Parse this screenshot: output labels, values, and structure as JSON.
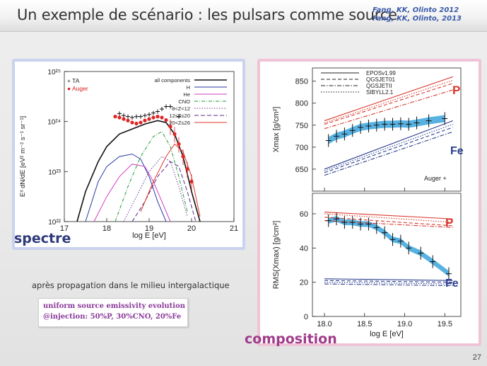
{
  "slide": {
    "title": "Un exemple de scénario : les pulsars comme source",
    "references": [
      "Fang, KK, Olinto 2012",
      "Fang, KK, Olinto, 2013"
    ],
    "label_spectrum": "spectre",
    "label_composition": "composition",
    "caption": "après propagation dans le milieu intergalactique",
    "note_lines": [
      "uniform source emissivity evolution",
      "@injection: 50%P, 30%CNO, 20%Fe"
    ],
    "page_number": "27"
  },
  "colors": {
    "blue_frame": "#c9d3ef",
    "pink_frame": "#efc4d6",
    "spectre_label": "#2e3a7a",
    "composition_label": "#a03a8a",
    "proton_red": "#d8382e",
    "iron_blue": "#2c3f8e",
    "model_band": "#3ba5dc"
  },
  "chart_data": [
    {
      "type": "line",
      "xlabel": "log E [eV]",
      "ylabel": "E³ dN/dE [eV² m⁻² s⁻¹ sr⁻¹]",
      "xlim": [
        17,
        21
      ],
      "ylim_log10": [
        22,
        25
      ],
      "x_ticks": [
        "17",
        "18",
        "19",
        "20",
        "21"
      ],
      "y_ticks": [
        "10²²",
        "10²³",
        "10²⁴",
        "10²⁵"
      ],
      "legend_data": [
        "+ TA",
        "● Auger"
      ],
      "legend_models": [
        "all components",
        "H",
        "He",
        "CNO",
        "8<Z<12",
        "12≤Z≤20",
        "20<Z≤26"
      ],
      "series": [
        {
          "name": "TA",
          "x": [
            18.3,
            18.4,
            18.5,
            18.6,
            18.7,
            18.8,
            18.9,
            19.0,
            19.1,
            19.2,
            19.3,
            19.4,
            19.5,
            19.7
          ],
          "y": [
            24.16,
            24.12,
            24.1,
            24.08,
            24.1,
            24.1,
            24.12,
            24.14,
            24.17,
            24.2,
            24.25,
            24.3,
            24.3,
            24.1
          ]
        },
        {
          "name": "Auger",
          "x": [
            18.2,
            18.3,
            18.4,
            18.5,
            18.6,
            18.7,
            18.8,
            18.9,
            19.0,
            19.1,
            19.2,
            19.3,
            19.4,
            19.5,
            19.6,
            19.7,
            19.8,
            19.9,
            20.0
          ],
          "y": [
            24.1,
            24.08,
            24.05,
            24.02,
            23.98,
            23.96,
            23.98,
            24.02,
            24.05,
            24.08,
            24.1,
            24.08,
            24.03,
            23.9,
            23.75,
            23.55,
            23.3,
            23.05,
            22.8
          ]
        },
        {
          "name": "all components",
          "x": [
            17.3,
            17.5,
            17.8,
            18.0,
            18.3,
            18.6,
            18.9,
            19.2,
            19.4,
            19.6,
            19.8,
            20.0,
            20.2
          ],
          "y": [
            22.0,
            22.6,
            23.2,
            23.5,
            23.75,
            23.85,
            23.95,
            24.02,
            23.98,
            23.75,
            23.3,
            22.6,
            22.0
          ]
        },
        {
          "name": "H",
          "x": [
            17.5,
            17.8,
            18.0,
            18.3,
            18.6,
            18.8,
            19.0,
            19.2,
            19.4
          ],
          "y": [
            22.0,
            22.8,
            23.1,
            23.3,
            23.35,
            23.25,
            22.9,
            22.4,
            22.0
          ]
        },
        {
          "name": "He",
          "x": [
            17.7,
            18.0,
            18.3,
            18.6,
            18.9,
            19.1,
            19.3,
            19.5
          ],
          "y": [
            22.0,
            22.5,
            22.9,
            23.15,
            23.1,
            22.8,
            22.4,
            22.0
          ]
        },
        {
          "name": "CNO",
          "x": [
            18.2,
            18.5,
            18.8,
            19.1,
            19.3,
            19.5,
            19.7,
            19.9
          ],
          "y": [
            22.0,
            22.7,
            23.3,
            23.7,
            23.8,
            23.5,
            22.9,
            22.2
          ]
        },
        {
          "name": "8<Z<12",
          "x": [
            18.4,
            18.7,
            19.0,
            19.3,
            19.5,
            19.7,
            19.9
          ],
          "y": [
            22.0,
            22.5,
            23.0,
            23.3,
            23.2,
            22.7,
            22.1
          ]
        },
        {
          "name": "12≤Z≤20",
          "x": [
            18.6,
            18.9,
            19.2,
            19.5,
            19.7,
            19.9,
            20.1
          ],
          "y": [
            22.0,
            22.4,
            22.9,
            23.2,
            23.1,
            22.6,
            22.0
          ]
        },
        {
          "name": "20<Z≤26",
          "x": [
            18.8,
            19.1,
            19.4,
            19.6,
            19.8,
            20.0,
            20.2
          ],
          "y": [
            22.2,
            22.8,
            23.3,
            23.55,
            23.4,
            22.9,
            22.1
          ]
        }
      ]
    },
    {
      "type": "line",
      "xlabel": "log E [eV]",
      "ylabel": "Xmax [g/cm²]",
      "xlim": [
        17.85,
        19.7
      ],
      "ylim": [
        600,
        880
      ],
      "x_ticks": [
        "18.0",
        "18.5",
        "19.0",
        "19.5"
      ],
      "y_ticks": [
        "650",
        "700",
        "750",
        "800",
        "850"
      ],
      "legend": [
        "EPOSv1.99",
        "QGSJET01",
        "QGSJETII",
        "SIBYLL2.1"
      ],
      "annotations": [
        "P",
        "Fe",
        "Auger +"
      ],
      "series": [
        {
          "name": "EPOSv1.99",
          "x": [
            18.0,
            19.6
          ],
          "y": [
            760,
            860
          ]
        },
        {
          "name": "QGSJET01",
          "x": [
            18.0,
            19.6
          ],
          "y": [
            752,
            845
          ]
        },
        {
          "name": "QGSJETII",
          "x": [
            18.0,
            19.6
          ],
          "y": [
            742,
            830
          ]
        },
        {
          "name": "SIBYLL2.1",
          "x": [
            18.0,
            19.6
          ],
          "y": [
            755,
            852
          ]
        },
        {
          "name": "EPOSv1.99",
          "x": [
            18.0,
            19.6
          ],
          "y": [
            650,
            760
          ]
        },
        {
          "name": "QGSJET01",
          "x": [
            18.0,
            19.6
          ],
          "y": [
            642,
            745
          ]
        },
        {
          "name": "QGSJETII",
          "x": [
            18.0,
            19.6
          ],
          "y": [
            636,
            735
          ]
        },
        {
          "name": "SIBYLL2.1",
          "x": [
            18.0,
            19.6
          ],
          "y": [
            646,
            752
          ]
        },
        {
          "name": "Auger",
          "x": [
            18.05,
            18.15,
            18.25,
            18.35,
            18.45,
            18.55,
            18.65,
            18.75,
            18.85,
            18.95,
            19.05,
            19.15,
            19.3,
            19.5
          ],
          "y": [
            715,
            725,
            730,
            738,
            745,
            748,
            750,
            752,
            752,
            753,
            752,
            755,
            760,
            765
          ]
        }
      ]
    },
    {
      "type": "line",
      "xlabel": "log E [eV]",
      "ylabel": "RMS(Xmax) [g/cm²]",
      "xlim": [
        17.85,
        19.7
      ],
      "ylim": [
        0,
        72
      ],
      "x_ticks": [
        "18.0",
        "18.5",
        "19.0",
        "19.5"
      ],
      "y_ticks": [
        "0",
        "20",
        "40",
        "60"
      ],
      "annotations": [
        "P",
        "Fe"
      ],
      "series": [
        {
          "name": "EPOSv1.99",
          "x": [
            18.0,
            19.6
          ],
          "y": [
            61,
            57
          ]
        },
        {
          "name": "QGSJET01",
          "x": [
            18.0,
            19.6
          ],
          "y": [
            58,
            53
          ]
        },
        {
          "name": "QGSJETII",
          "x": [
            18.0,
            19.6
          ],
          "y": [
            56,
            52
          ]
        },
        {
          "name": "SIBYLL2.1",
          "x": [
            18.0,
            19.6
          ],
          "y": [
            60,
            55
          ]
        },
        {
          "name": "EPOSv1.99",
          "x": [
            18.0,
            19.6
          ],
          "y": [
            22,
            21
          ]
        },
        {
          "name": "QGSJET01",
          "x": [
            18.0,
            19.6
          ],
          "y": [
            21,
            20
          ]
        },
        {
          "name": "QGSJETII",
          "x": [
            18.0,
            19.6
          ],
          "y": [
            19,
            18
          ]
        },
        {
          "name": "SIBYLL2.1",
          "x": [
            18.0,
            19.6
          ],
          "y": [
            20,
            19
          ]
        },
        {
          "name": "Auger",
          "x": [
            18.05,
            18.15,
            18.25,
            18.35,
            18.45,
            18.55,
            18.65,
            18.75,
            18.85,
            18.95,
            19.05,
            19.2,
            19.35,
            19.55
          ],
          "y": [
            56,
            57,
            55,
            55,
            54,
            54,
            52,
            49,
            45,
            44,
            40,
            37,
            32,
            25
          ]
        }
      ]
    }
  ]
}
